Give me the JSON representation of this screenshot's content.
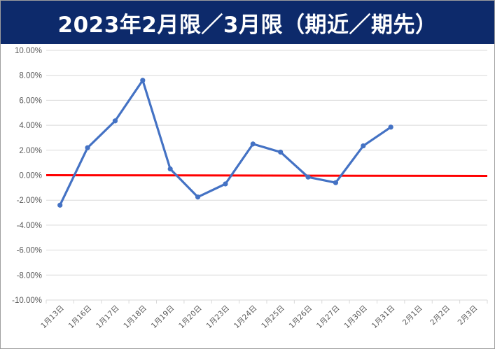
{
  "chart_data": {
    "type": "line",
    "title": "2023年2月限／3月限（期近／期先）",
    "xlabel": "",
    "ylabel": "",
    "categories": [
      "1月13日",
      "1月16日",
      "1月17日",
      "1月18日",
      "1月19日",
      "1月20日",
      "1月23日",
      "1月24日",
      "1月25日",
      "1月26日",
      "1月27日",
      "1月30日",
      "1月31日",
      "2月1日",
      "2月2日",
      "2月3日"
    ],
    "series": [
      {
        "values": [
          -2.4,
          2.2,
          4.35,
          7.6,
          0.5,
          -1.75,
          -0.7,
          2.5,
          1.85,
          -0.15,
          -0.6,
          2.35,
          3.85,
          null,
          null,
          null
        ],
        "color": "#4472c4"
      }
    ],
    "reference_line": {
      "value": 0.0,
      "color": "#ff0000"
    },
    "ylim": [
      -10,
      10
    ],
    "ytick_step": 2,
    "ytick_labels": [
      "10.00%",
      "8.00%",
      "6.00%",
      "4.00%",
      "2.00%",
      "0.00%",
      "-2.00%",
      "-4.00%",
      "-6.00%",
      "-8.00%",
      "-10.00%"
    ],
    "grid": true,
    "legend": "none"
  }
}
